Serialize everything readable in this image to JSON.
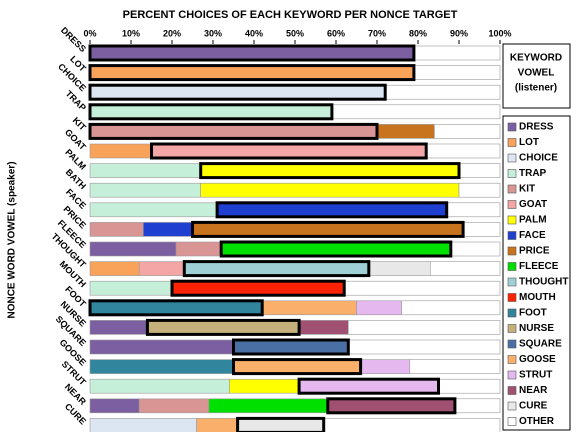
{
  "chart_data": {
    "type": "stacked_barh",
    "title": "PERCENT CHOICES OF EACH KEYWORD PER NONCE TARGET",
    "ylabel": "NONCE WORD VOWEL (speaker)",
    "legend_title": [
      "KEYWORD",
      "VOWEL",
      "(listener)"
    ],
    "legend_position": "right",
    "categories": [
      "DRESS",
      "LOT",
      "CHOICE",
      "TRAP",
      "KIT",
      "GOAT",
      "PALM",
      "BATH",
      "FACE",
      "PRICE",
      "FLEECE",
      "THOUGHT",
      "MOUTH",
      "FOOT",
      "NURSE",
      "SQUARE",
      "GOOSE",
      "STRUT",
      "NEAR",
      "CURE"
    ],
    "xlim": [
      0,
      100
    ],
    "xticks": [
      {
        "value": 0,
        "label": "0%"
      },
      {
        "value": 10,
        "label": "10%"
      },
      {
        "value": 20,
        "label": "20%"
      },
      {
        "value": 30,
        "label": "30%"
      },
      {
        "value": 40,
        "label": "40%"
      },
      {
        "value": 50,
        "label": "50%"
      },
      {
        "value": 60,
        "label": "60%"
      },
      {
        "value": 70,
        "label": "70%"
      },
      {
        "value": 80,
        "label": "80%"
      },
      {
        "value": 90,
        "label": "90%"
      },
      {
        "value": 100,
        "label": "100%"
      }
    ],
    "series": [
      {
        "name": "DRESS",
        "color": "#7b5fa0",
        "values": [
          79,
          null,
          null,
          null,
          null,
          null,
          null,
          null,
          null,
          null,
          21,
          null,
          null,
          null,
          14,
          35,
          null,
          null,
          12,
          null
        ]
      },
      {
        "name": "LOT",
        "color": "#f9a25a",
        "values": [
          null,
          79,
          null,
          null,
          null,
          15,
          null,
          null,
          null,
          null,
          null,
          12,
          null,
          null,
          null,
          null,
          null,
          null,
          null,
          null
        ]
      },
      {
        "name": "CHOICE",
        "color": "#dce6f2",
        "values": [
          null,
          null,
          72,
          null,
          null,
          null,
          null,
          null,
          null,
          null,
          null,
          null,
          null,
          null,
          null,
          null,
          null,
          null,
          null,
          26
        ]
      },
      {
        "name": "TRAP",
        "color": "#c6efd9",
        "values": [
          null,
          null,
          null,
          59,
          null,
          null,
          27,
          27,
          31,
          null,
          null,
          null,
          20,
          null,
          null,
          null,
          null,
          34,
          null,
          null
        ]
      },
      {
        "name": "KIT",
        "color": "#d99594",
        "values": [
          null,
          null,
          null,
          null,
          70,
          null,
          null,
          null,
          null,
          13,
          11,
          null,
          null,
          null,
          null,
          null,
          null,
          null,
          17,
          null
        ]
      },
      {
        "name": "GOAT",
        "color": "#f4a6a6",
        "values": [
          null,
          null,
          null,
          null,
          null,
          67,
          null,
          null,
          null,
          null,
          null,
          11,
          null,
          null,
          null,
          null,
          null,
          null,
          null,
          null
        ]
      },
      {
        "name": "PALM",
        "color": "#ffff00",
        "values": [
          null,
          null,
          null,
          null,
          null,
          null,
          63,
          63,
          null,
          null,
          null,
          null,
          null,
          null,
          null,
          null,
          null,
          17,
          null,
          null
        ]
      },
      {
        "name": "FACE",
        "color": "#1f3fd0",
        "values": [
          null,
          null,
          null,
          null,
          null,
          null,
          null,
          null,
          56,
          12,
          null,
          null,
          null,
          null,
          null,
          null,
          null,
          null,
          null,
          null
        ]
      },
      {
        "name": "PRICE",
        "color": "#c8731e",
        "values": [
          null,
          null,
          null,
          null,
          14,
          null,
          null,
          null,
          null,
          66,
          null,
          null,
          null,
          null,
          null,
          null,
          null,
          null,
          null,
          null
        ]
      },
      {
        "name": "FLEECE",
        "color": "#00e000",
        "values": [
          null,
          null,
          null,
          null,
          null,
          null,
          null,
          null,
          null,
          null,
          56,
          null,
          null,
          null,
          null,
          null,
          null,
          null,
          29,
          null
        ]
      },
      {
        "name": "THOUGHT",
        "color": "#9fd0d6",
        "values": [
          null,
          null,
          null,
          null,
          null,
          null,
          null,
          null,
          null,
          null,
          null,
          45,
          null,
          null,
          null,
          null,
          null,
          null,
          null,
          null
        ]
      },
      {
        "name": "MOUTH",
        "color": "#ff2200",
        "values": [
          null,
          null,
          null,
          null,
          null,
          null,
          null,
          null,
          null,
          null,
          null,
          null,
          42,
          null,
          null,
          null,
          null,
          null,
          null,
          null
        ]
      },
      {
        "name": "FOOT",
        "color": "#31859c",
        "values": [
          null,
          null,
          null,
          null,
          null,
          null,
          null,
          null,
          null,
          null,
          null,
          null,
          null,
          42,
          null,
          null,
          35,
          null,
          null,
          null
        ]
      },
      {
        "name": "NURSE",
        "color": "#c4b07a",
        "values": [
          null,
          null,
          null,
          null,
          null,
          null,
          null,
          null,
          null,
          null,
          null,
          null,
          null,
          null,
          37,
          null,
          null,
          null,
          null,
          null
        ]
      },
      {
        "name": "SQUARE",
        "color": "#4a6fa5",
        "values": [
          null,
          null,
          null,
          null,
          null,
          null,
          null,
          null,
          null,
          null,
          null,
          null,
          null,
          null,
          null,
          28,
          null,
          null,
          null,
          null
        ]
      },
      {
        "name": "GOOSE",
        "color": "#fab06a",
        "values": [
          null,
          null,
          null,
          null,
          null,
          null,
          null,
          null,
          null,
          null,
          null,
          null,
          null,
          23,
          null,
          null,
          31,
          null,
          null,
          10
        ]
      },
      {
        "name": "STRUT",
        "color": "#e6b8f0",
        "values": [
          null,
          null,
          null,
          null,
          null,
          null,
          null,
          null,
          null,
          null,
          null,
          null,
          null,
          11,
          null,
          null,
          12,
          34,
          null,
          null
        ]
      },
      {
        "name": "NEAR",
        "color": "#a05070",
        "values": [
          null,
          null,
          null,
          null,
          null,
          null,
          null,
          null,
          null,
          null,
          null,
          null,
          null,
          null,
          12,
          null,
          null,
          null,
          31,
          null
        ]
      },
      {
        "name": "CURE",
        "color": "#e8e8e8",
        "values": [
          null,
          null,
          null,
          null,
          null,
          null,
          null,
          null,
          null,
          null,
          null,
          15,
          null,
          null,
          null,
          null,
          null,
          null,
          null,
          21
        ]
      },
      {
        "name": "OTHER",
        "color": "#ffffff",
        "values": [
          21,
          21,
          28,
          41,
          16,
          18,
          10,
          10,
          13,
          9,
          12,
          17,
          38,
          24,
          37,
          37,
          22,
          15,
          11,
          43
        ]
      }
    ]
  }
}
